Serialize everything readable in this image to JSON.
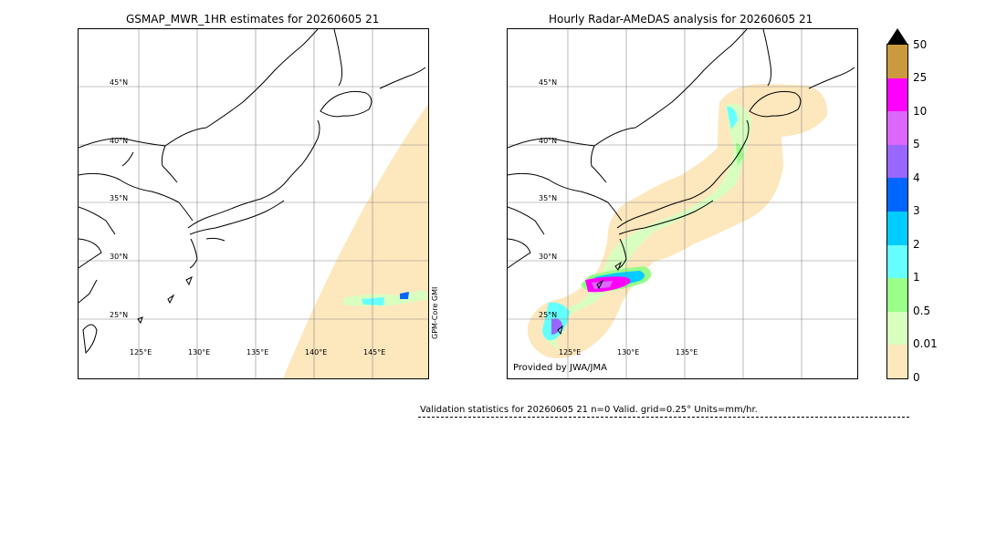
{
  "left_panel": {
    "title": "GSMAP_MWR_1HR estimates for 20260605 21",
    "lat_labels": [
      "45°N",
      "40°N",
      "35°N",
      "30°N",
      "25°N"
    ],
    "lon_labels": [
      "125°E",
      "130°E",
      "135°E",
      "140°E",
      "145°E"
    ],
    "satellite_label": "GPM-Core GMI"
  },
  "right_panel": {
    "title": "Hourly Radar-AMeDAS analysis for 20260605 21",
    "lat_labels": [
      "45°N",
      "40°N",
      "35°N",
      "30°N",
      "25°N"
    ],
    "lon_labels": [
      "125°E",
      "130°E",
      "135°E"
    ],
    "credit": "Provided by JWA/JMA"
  },
  "colorbar": {
    "ticks": [
      "50",
      "25",
      "10",
      "5",
      "4",
      "3",
      "2",
      "1",
      "0.5",
      "0.01",
      "0"
    ],
    "colors": [
      "#cc9a3e",
      "#ff00ff",
      "#dd66ff",
      "#9966ff",
      "#0066ff",
      "#00ccff",
      "#66ffff",
      "#99ff88",
      "#d8ffc0",
      "#fde7bd"
    ],
    "extend_color": "#000000"
  },
  "validation": {
    "text": "Validation statistics for 20260605 21  n=0 Valid. grid=0.25° Units=mm/hr."
  }
}
